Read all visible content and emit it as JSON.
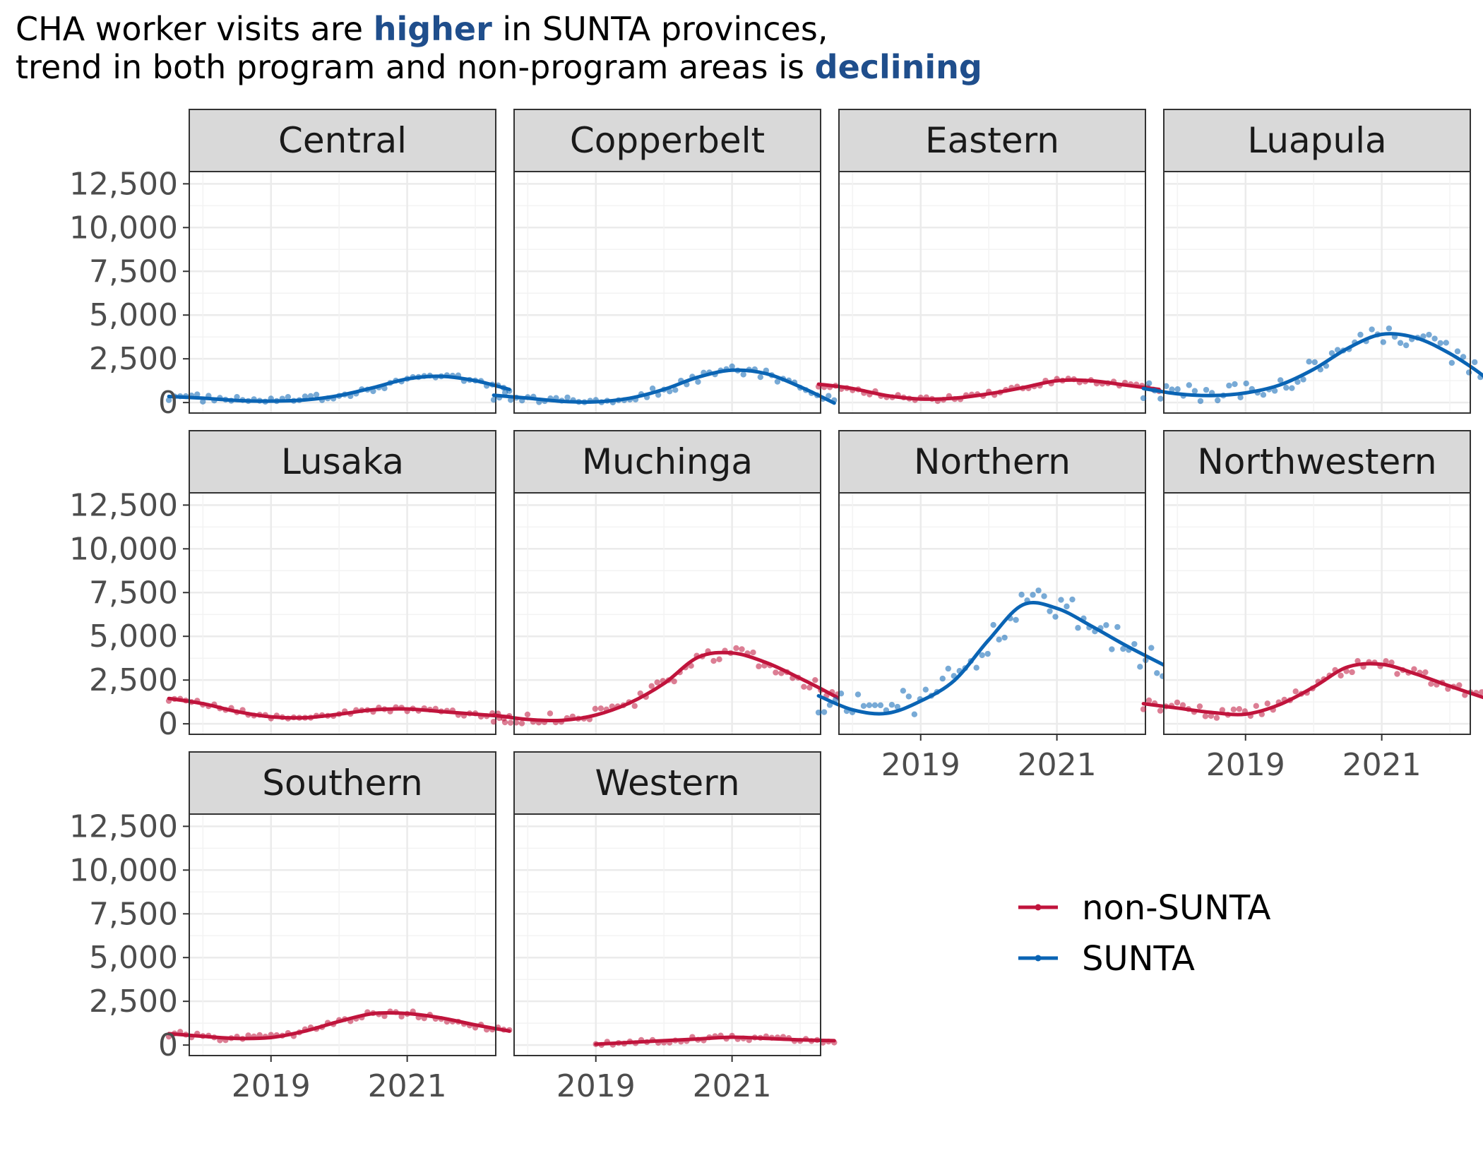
{
  "title": {
    "line1_pre": "CHA worker visits are ",
    "line1_hl": "higher",
    "line1_post": " in SUNTA provinces,",
    "line2_pre": "trend in both program and non-program areas is ",
    "line2_hl": "declining"
  },
  "legend": [
    {
      "label": "non-SUNTA",
      "color": "#c0143c"
    },
    {
      "label": "SUNTA",
      "color": "#0a64b4"
    }
  ],
  "colors": {
    "non-SUNTA": "#c0143c",
    "SUNTA": "#0a64b4",
    "strip_fill": "#d9d9d9",
    "grid": "#ebebeb"
  },
  "chart_data": {
    "type": "line",
    "facet_type": "small-multiples",
    "y_ticks": [
      "0",
      "2,500",
      "5,000",
      "7,500",
      "10,000",
      "12,500"
    ],
    "y_tick_values": [
      0,
      2500,
      5000,
      7500,
      10000,
      12500
    ],
    "x_ticks": [
      "2019",
      "2021"
    ],
    "x_tick_values": [
      2019,
      2021
    ],
    "xlim": [
      2017.8,
      2022.3
    ],
    "ylim": [
      -600,
      13200
    ],
    "grid": true,
    "legend_position": "bottom-right",
    "panels": [
      {
        "name": "Central",
        "group": "SUNTA",
        "trend": [
          [
            2017.5,
            350
          ],
          [
            2018.0,
            250
          ],
          [
            2018.5,
            120
          ],
          [
            2019.0,
            80
          ],
          [
            2019.5,
            150
          ],
          [
            2020.0,
            400
          ],
          [
            2020.5,
            850
          ],
          [
            2021.0,
            1350
          ],
          [
            2021.5,
            1500
          ],
          [
            2022.0,
            1250
          ],
          [
            2022.5,
            750
          ]
        ]
      },
      {
        "name": "Copperbelt",
        "group": "SUNTA",
        "trend": [
          [
            2017.5,
            420
          ],
          [
            2018.0,
            250
          ],
          [
            2018.5,
            70
          ],
          [
            2019.0,
            40
          ],
          [
            2019.5,
            250
          ],
          [
            2020.0,
            750
          ],
          [
            2020.5,
            1450
          ],
          [
            2021.0,
            1850
          ],
          [
            2021.5,
            1650
          ],
          [
            2022.0,
            900
          ],
          [
            2022.5,
            -30
          ]
        ]
      },
      {
        "name": "Eastern",
        "group": "non-SUNTA",
        "trend": [
          [
            2017.5,
            1050
          ],
          [
            2018.0,
            800
          ],
          [
            2018.5,
            400
          ],
          [
            2019.0,
            200
          ],
          [
            2019.5,
            250
          ],
          [
            2020.0,
            500
          ],
          [
            2020.5,
            850
          ],
          [
            2021.0,
            1250
          ],
          [
            2021.5,
            1250
          ],
          [
            2022.0,
            1000
          ],
          [
            2022.5,
            750
          ]
        ]
      },
      {
        "name": "Luapula",
        "group": "SUNTA",
        "trend": [
          [
            2017.5,
            800
          ],
          [
            2018.0,
            500
          ],
          [
            2018.5,
            400
          ],
          [
            2019.0,
            550
          ],
          [
            2019.5,
            1000
          ],
          [
            2020.0,
            1900
          ],
          [
            2020.5,
            3100
          ],
          [
            2021.0,
            3900
          ],
          [
            2021.5,
            3700
          ],
          [
            2022.0,
            2800
          ],
          [
            2022.5,
            1500
          ],
          [
            2022.7,
            600
          ]
        ]
      },
      {
        "name": "Lusaka",
        "group": "non-SUNTA",
        "trend": [
          [
            2017.5,
            1450
          ],
          [
            2018.0,
            1150
          ],
          [
            2018.5,
            700
          ],
          [
            2019.0,
            400
          ],
          [
            2019.5,
            350
          ],
          [
            2020.0,
            550
          ],
          [
            2020.5,
            800
          ],
          [
            2021.0,
            850
          ],
          [
            2021.5,
            700
          ],
          [
            2022.0,
            550
          ],
          [
            2022.5,
            400
          ]
        ]
      },
      {
        "name": "Muchinga",
        "group": "non-SUNTA",
        "trend": [
          [
            2017.5,
            500
          ],
          [
            2018.0,
            250
          ],
          [
            2018.5,
            200
          ],
          [
            2019.0,
            500
          ],
          [
            2019.5,
            1200
          ],
          [
            2020.0,
            2300
          ],
          [
            2020.5,
            3800
          ],
          [
            2021.0,
            4050
          ],
          [
            2021.5,
            3500
          ],
          [
            2022.0,
            2600
          ],
          [
            2022.5,
            1600
          ],
          [
            2022.8,
            900
          ]
        ]
      },
      {
        "name": "Northern",
        "group": "SUNTA",
        "trend": [
          [
            2017.5,
            1600
          ],
          [
            2018.0,
            800
          ],
          [
            2018.5,
            600
          ],
          [
            2019.0,
            1300
          ],
          [
            2019.5,
            2500
          ],
          [
            2020.0,
            4800
          ],
          [
            2020.5,
            6800
          ],
          [
            2021.0,
            6600
          ],
          [
            2021.5,
            5600
          ],
          [
            2022.0,
            4500
          ],
          [
            2022.5,
            3500
          ],
          [
            2022.8,
            2900
          ]
        ]
      },
      {
        "name": "Northwestern",
        "group": "non-SUNTA",
        "trend": [
          [
            2017.5,
            1150
          ],
          [
            2018.0,
            900
          ],
          [
            2018.5,
            650
          ],
          [
            2019.0,
            550
          ],
          [
            2019.5,
            1100
          ],
          [
            2020.0,
            2100
          ],
          [
            2020.5,
            3250
          ],
          [
            2021.0,
            3400
          ],
          [
            2021.5,
            2850
          ],
          [
            2022.0,
            2150
          ],
          [
            2022.5,
            1500
          ],
          [
            2022.8,
            1150
          ]
        ]
      },
      {
        "name": "Southern",
        "group": "non-SUNTA",
        "trend": [
          [
            2017.5,
            650
          ],
          [
            2018.0,
            500
          ],
          [
            2018.5,
            380
          ],
          [
            2019.0,
            430
          ],
          [
            2019.5,
            800
          ],
          [
            2020.0,
            1350
          ],
          [
            2020.5,
            1800
          ],
          [
            2021.0,
            1800
          ],
          [
            2021.5,
            1550
          ],
          [
            2022.0,
            1150
          ],
          [
            2022.5,
            800
          ]
        ]
      },
      {
        "name": "Western",
        "group": "non-SUNTA",
        "trend": [
          [
            2019.0,
            50
          ],
          [
            2019.5,
            150
          ],
          [
            2020.0,
            250
          ],
          [
            2020.5,
            350
          ],
          [
            2021.0,
            450
          ],
          [
            2021.5,
            380
          ],
          [
            2022.0,
            300
          ],
          [
            2022.5,
            250
          ]
        ]
      }
    ]
  }
}
